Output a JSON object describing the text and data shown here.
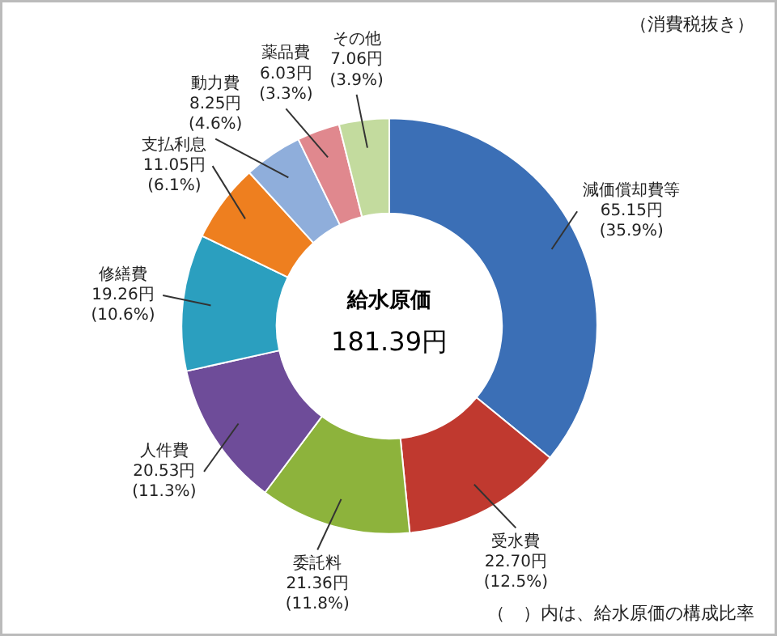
{
  "chart_data": {
    "type": "donut",
    "title": "給水原価",
    "subtitle": "181.39円",
    "categories": [
      "減価償却費等",
      "受水費",
      "委託料",
      "人件費",
      "修繕費",
      "支払利息",
      "動力費",
      "薬品費",
      "その他"
    ],
    "values": [
      65.15,
      22.7,
      21.36,
      20.53,
      19.26,
      11.05,
      8.25,
      6.03,
      7.06
    ],
    "value_labels": [
      "65.15円\n(35.9%)",
      "22.70円\n(12.5%)",
      "21.36円\n(11.8%)",
      "20.53円\n(11.3%)",
      "19.26円\n(10.6%)",
      "11.05円\n(6.1%)",
      "8.25円\n(4.6%)",
      "6.03円\n(3.3%)",
      "7.06円\n(3.9%)"
    ],
    "colors": [
      "#3b6fb6",
      "#c0392f",
      "#8db33c",
      "#6e4c99",
      "#2b9fbf",
      "#ee7f1f",
      "#8faedb",
      "#e0888e",
      "#c3db9e"
    ],
    "annotations": [
      "（消費税抜き）",
      "（　）内は、給水原価の構成比率"
    ]
  }
}
